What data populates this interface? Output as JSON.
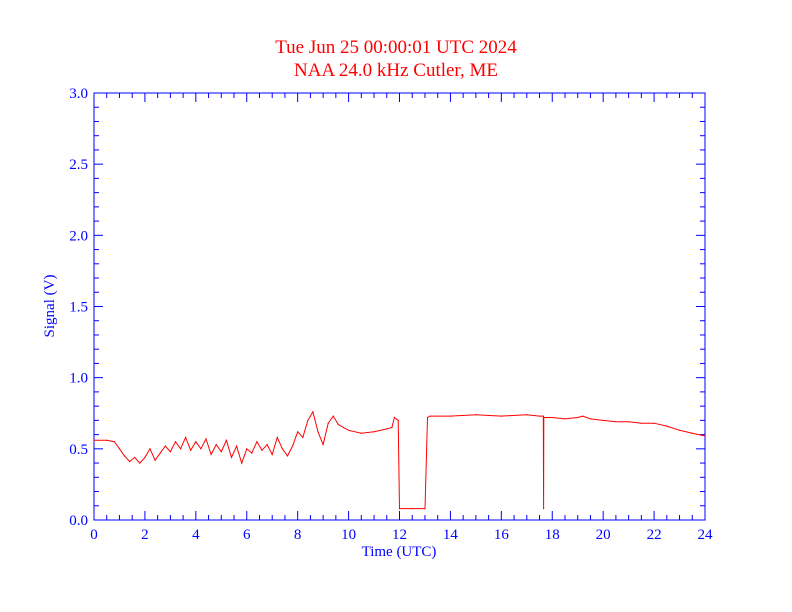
{
  "colors": {
    "axis": "#0000ff",
    "series": "#ff0000",
    "title": "#ff0000",
    "background": "#ffffff"
  },
  "chart_data": {
    "type": "line",
    "title": "Tue Jun 25 00:00:01 UTC 2024",
    "subtitle": "NAA 24.0 kHz Cutler, ME",
    "xlabel": "Time (UTC)",
    "ylabel": "Signal (V)",
    "xlim": [
      0,
      24
    ],
    "ylim": [
      0,
      3.0
    ],
    "xticks": [
      "0",
      "2",
      "4",
      "6",
      "8",
      "10",
      "12",
      "14",
      "16",
      "18",
      "20",
      "22",
      "24"
    ],
    "yticks": [
      "0.0",
      "0.5",
      "1.0",
      "1.5",
      "2.0",
      "2.5",
      "3.0"
    ],
    "grid": false,
    "series": [
      {
        "color": "#ff0000",
        "x": [
          0,
          0.5,
          0.8,
          1.0,
          1.2,
          1.4,
          1.6,
          1.8,
          2.0,
          2.2,
          2.4,
          2.6,
          2.8,
          3.0,
          3.2,
          3.4,
          3.6,
          3.8,
          4.0,
          4.2,
          4.4,
          4.6,
          4.8,
          5.0,
          5.2,
          5.4,
          5.6,
          5.8,
          6.0,
          6.2,
          6.4,
          6.6,
          6.8,
          7.0,
          7.2,
          7.4,
          7.6,
          7.8,
          8.0,
          8.2,
          8.4,
          8.6,
          8.8,
          9.0,
          9.2,
          9.4,
          9.6,
          9.8,
          10.0,
          10.5,
          11.0,
          11.5,
          11.7,
          11.8,
          11.95,
          12.0,
          12.5,
          13.0,
          13.1,
          13.2,
          14.0,
          15.0,
          16.0,
          17.0,
          17.5,
          17.65,
          17.66,
          17.67,
          18.0,
          18.5,
          19.0,
          19.2,
          19.5,
          20.0,
          20.5,
          21.0,
          21.5,
          22.0,
          22.5,
          23.0,
          23.5,
          24.0
        ],
        "y": [
          0.56,
          0.56,
          0.55,
          0.5,
          0.45,
          0.41,
          0.44,
          0.4,
          0.44,
          0.5,
          0.42,
          0.47,
          0.52,
          0.48,
          0.55,
          0.5,
          0.58,
          0.49,
          0.55,
          0.5,
          0.57,
          0.46,
          0.53,
          0.48,
          0.56,
          0.44,
          0.52,
          0.4,
          0.5,
          0.47,
          0.55,
          0.49,
          0.53,
          0.46,
          0.58,
          0.5,
          0.45,
          0.52,
          0.62,
          0.58,
          0.7,
          0.76,
          0.62,
          0.53,
          0.68,
          0.73,
          0.67,
          0.65,
          0.63,
          0.61,
          0.62,
          0.64,
          0.65,
          0.72,
          0.7,
          0.08,
          0.08,
          0.08,
          0.72,
          0.73,
          0.73,
          0.74,
          0.73,
          0.74,
          0.73,
          0.73,
          0.08,
          0.72,
          0.72,
          0.71,
          0.72,
          0.73,
          0.71,
          0.7,
          0.69,
          0.69,
          0.68,
          0.68,
          0.66,
          0.63,
          0.61,
          0.59
        ]
      }
    ]
  }
}
